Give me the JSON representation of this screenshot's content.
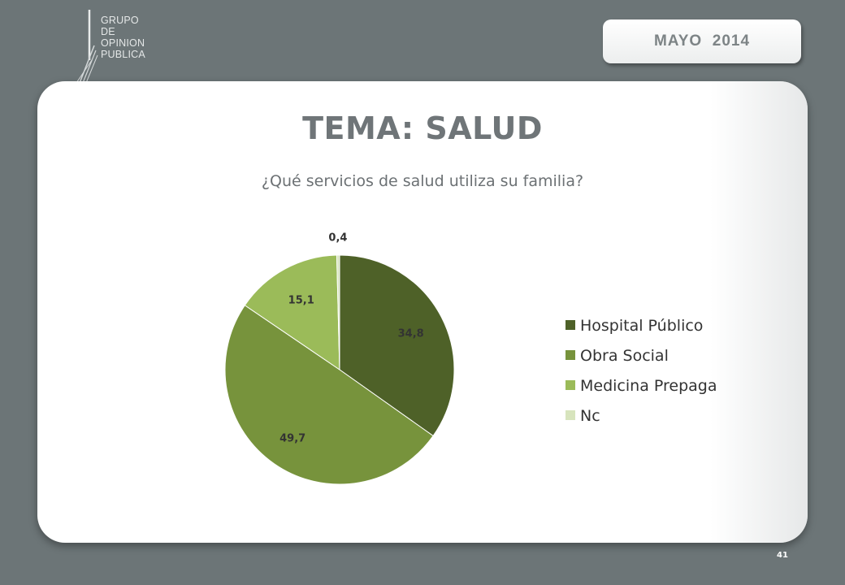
{
  "logo": {
    "lines": [
      "GRUPO",
      "DE",
      "OPINION",
      "PUBLICA"
    ]
  },
  "date_label": "MAYO  2014",
  "slide": {
    "title": "TEMA: SALUD",
    "subtitle": "¿Qué servicios de salud utiliza su familia?",
    "page_number": "41"
  },
  "chart_data": {
    "type": "pie",
    "categories": [
      "Hospital Público",
      "Obra Social",
      "Medicina Prepaga",
      "Nc"
    ],
    "values": [
      34.8,
      49.7,
      15.1,
      0.4
    ],
    "data_labels": [
      "34,8",
      "49,7",
      "15,1",
      "0,4"
    ],
    "colors": [
      "#4e6128",
      "#77933c",
      "#9bbb59",
      "#d7e4bd"
    ],
    "legend_position": "right"
  }
}
